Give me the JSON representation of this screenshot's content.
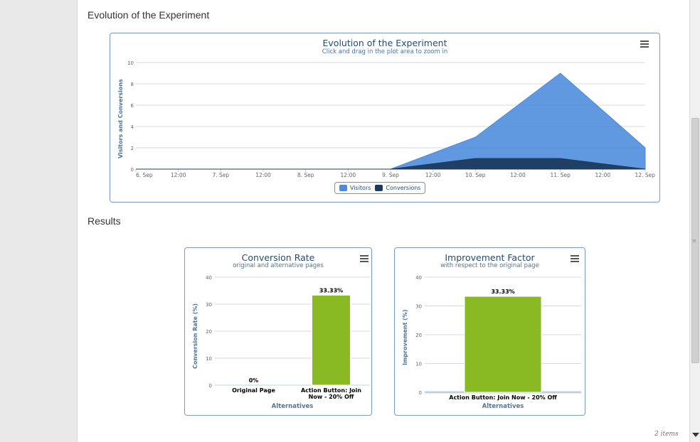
{
  "sections": {
    "evolution_title": "Evolution of the Experiment",
    "results_title": "Results"
  },
  "evolution_chart": {
    "title": "Evolution of the Experiment",
    "subtitle": "Click and drag in the plot area to zoom in",
    "ylabel": "Visitors and Conversions",
    "legend": [
      "Visitors",
      "Conversions"
    ],
    "colors": {
      "visitors": "#4a8bdc",
      "conversions": "#1c3a5e"
    }
  },
  "conversion_chart": {
    "title": "Conversion Rate",
    "subtitle": "original and alternative pages",
    "ylabel": "Conversion Rate (%)",
    "xlabel": "Alternatives",
    "bar_color": "#8aba23"
  },
  "improvement_chart": {
    "title": "Improvement Factor",
    "subtitle": "with respect to the original page",
    "ylabel": "Improvement (%)",
    "xlabel": "Alternatives",
    "bar_color": "#8aba23"
  },
  "footer": {
    "items_count": "2 items"
  },
  "chart_data": [
    {
      "type": "area",
      "title": "Evolution of the Experiment",
      "subtitle": "Click and drag in the plot area to zoom in",
      "ylabel": "Visitors and Conversions",
      "xlabel": "",
      "x_ticks": [
        "6. Sep",
        "12:00",
        "7. Sep",
        "12:00",
        "8. Sep",
        "12:00",
        "9. Sep",
        "12:00",
        "10. Sep",
        "12:00",
        "11. Sep",
        "12:00",
        "12. Sep"
      ],
      "y_ticks": [
        0,
        2,
        4,
        6,
        8,
        10
      ],
      "ylim": [
        0,
        10
      ],
      "x": [
        "6. Sep",
        "7. Sep",
        "8. Sep",
        "9. Sep",
        "10. Sep",
        "11. Sep",
        "12. Sep"
      ],
      "series": [
        {
          "name": "Visitors",
          "values": [
            0,
            0,
            0,
            0,
            3,
            9,
            2
          ]
        },
        {
          "name": "Conversions",
          "values": [
            0,
            0,
            0,
            0,
            1,
            1,
            0
          ]
        }
      ],
      "legend": "bottom-center",
      "grid": true
    },
    {
      "type": "bar",
      "title": "Conversion Rate",
      "subtitle": "original and alternative pages",
      "categories": [
        "Original Page",
        "Action Button: Join Now - 20% Off"
      ],
      "values": [
        0,
        33.33
      ],
      "data_labels": [
        "0%",
        "33.33%"
      ],
      "ylabel": "Conversion Rate (%)",
      "xlabel": "Alternatives",
      "y_ticks": [
        0,
        10,
        20,
        30,
        40
      ],
      "ylim": [
        0,
        40
      ],
      "grid": true
    },
    {
      "type": "bar",
      "title": "Improvement Factor",
      "subtitle": "with respect to the original page",
      "categories": [
        "Action Button: Join Now - 20% Off"
      ],
      "values": [
        33.33
      ],
      "data_labels": [
        "33.33%"
      ],
      "ylabel": "Improvement (%)",
      "xlabel": "Alternatives",
      "y_ticks": [
        0,
        10,
        20,
        30,
        40
      ],
      "ylim": [
        0,
        40
      ],
      "grid": true
    }
  ]
}
